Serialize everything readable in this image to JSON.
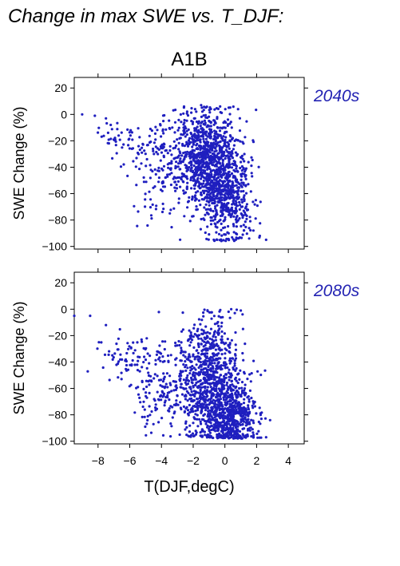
{
  "figure": {
    "title": "Change in max SWE vs. T_DJF:",
    "scenario": "A1B",
    "xlabel": "T(DJF,degC)"
  },
  "theme": {
    "point_color": "#1f1fbf",
    "label_color": "#2323b3",
    "axis_color": "#000000"
  },
  "chart_data": [
    {
      "type": "scatter",
      "panel_label": "2040s",
      "ylabel": "SWE Change (%)",
      "xlim": [
        -9.5,
        5
      ],
      "ylim": [
        -102,
        28
      ],
      "xticks": [
        -8,
        -6,
        -4,
        -2,
        0,
        2,
        4
      ],
      "yticks": [
        20,
        0,
        -20,
        -40,
        -60,
        -80,
        -100
      ],
      "grid": false,
      "x_tick_labels_shown": false,
      "clusters": [
        {
          "x_mean": -1.2,
          "x_sd": 1.05,
          "y_mean": -33,
          "y_sd": 19,
          "n": 900,
          "y_max": 6,
          "y_min": -96
        },
        {
          "x_mean": 0.2,
          "x_sd": 0.85,
          "y_mean": -62,
          "y_sd": 18,
          "n": 500,
          "y_max": 6,
          "y_min": -96
        },
        {
          "x_mean": -4.2,
          "x_sd": 0.9,
          "y_mean": -40,
          "y_sd": 22,
          "n": 130,
          "y_max": 2,
          "y_min": -88
        },
        {
          "x_mean": -6.5,
          "x_sd": 1.0,
          "y_mean": -18,
          "y_sd": 10,
          "n": 45,
          "y_max": 2,
          "y_min": -45
        }
      ],
      "points": [
        [
          -9.0,
          0
        ],
        [
          -8.2,
          -1
        ],
        [
          -7.5,
          -3
        ],
        [
          -7.2,
          -8
        ],
        [
          2.6,
          -95
        ],
        [
          2.2,
          -92
        ],
        [
          1.8,
          -88
        ],
        [
          -0.3,
          6
        ],
        [
          -1.5,
          7
        ]
      ]
    },
    {
      "type": "scatter",
      "panel_label": "2080s",
      "ylabel": "SWE Change (%)",
      "xlim": [
        -9.5,
        5
      ],
      "ylim": [
        -102,
        28
      ],
      "xticks": [
        -8,
        -6,
        -4,
        -2,
        0,
        2,
        4
      ],
      "yticks": [
        20,
        0,
        -20,
        -40,
        -60,
        -80,
        -100
      ],
      "grid": false,
      "x_tick_labels_shown": true,
      "clusters": [
        {
          "x_mean": -1.0,
          "x_sd": 1.05,
          "y_mean": -55,
          "y_sd": 22,
          "n": 900,
          "y_max": 0,
          "y_min": -98
        },
        {
          "x_mean": 0.4,
          "x_sd": 0.85,
          "y_mean": -82,
          "y_sd": 12,
          "n": 550,
          "y_max": 0,
          "y_min": -98
        },
        {
          "x_mean": -4.0,
          "x_sd": 0.9,
          "y_mean": -62,
          "y_sd": 20,
          "n": 140,
          "y_max": -1,
          "y_min": -96
        },
        {
          "x_mean": -6.2,
          "x_sd": 0.9,
          "y_mean": -38,
          "y_sd": 10,
          "n": 70,
          "y_max": -5,
          "y_min": -62
        }
      ],
      "points": [
        [
          -9.5,
          -5
        ],
        [
          -8.5,
          -5
        ],
        [
          -7.5,
          -12
        ],
        [
          2.6,
          -97
        ],
        [
          2.3,
          -83
        ],
        [
          1.0,
          -1
        ],
        [
          0.4,
          0
        ]
      ]
    }
  ]
}
